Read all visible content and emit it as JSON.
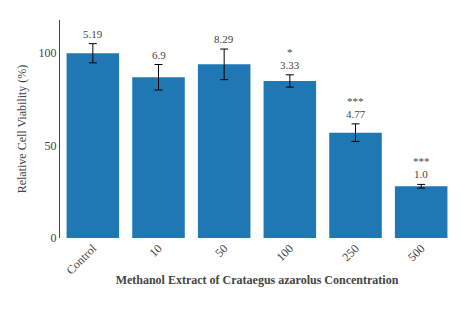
{
  "chart_data": {
    "type": "bar",
    "categories": [
      "Control",
      "10",
      "50",
      "100",
      "250",
      "500"
    ],
    "values": [
      100.0,
      87.0,
      94.0,
      85.0,
      57.0,
      28.0
    ],
    "errors": [
      5.19,
      6.9,
      8.29,
      3.33,
      4.77,
      1.0
    ],
    "error_labels": [
      "5.19",
      "6.9",
      "8.29",
      "3.33",
      "4.77",
      "1.0"
    ],
    "significance": [
      null,
      null,
      null,
      "*",
      "***",
      "***"
    ],
    "xlabel": "Methanol Extract of Crataegus azarolus Concentration",
    "ylabel": "Relative Cell Viability (%)",
    "ylim": [
      0,
      118
    ],
    "yticks": [
      0,
      50,
      100
    ],
    "grid": false
  }
}
